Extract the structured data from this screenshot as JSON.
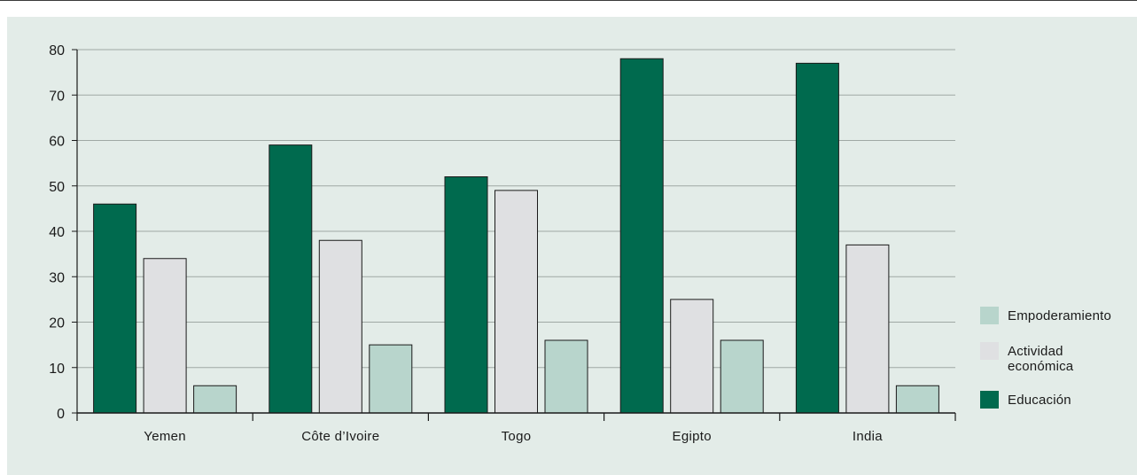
{
  "chart_data": {
    "type": "bar",
    "categories": [
      "Yemen",
      "Côte d’Ivoire",
      "Togo",
      "Egipto",
      "India"
    ],
    "series": [
      {
        "name": "Educación",
        "color": "#006a4e",
        "values": [
          46,
          59,
          52,
          78,
          77
        ]
      },
      {
        "name": "Actividad económica",
        "label_lines": [
          "Actividad",
          "económica"
        ],
        "color": "#dfe0e2",
        "values": [
          34,
          38,
          49,
          25,
          37
        ]
      },
      {
        "name": "Empoderamiento",
        "color": "#b8d5cc",
        "values": [
          6,
          15,
          16,
          16,
          6
        ]
      }
    ],
    "ylim": [
      0,
      80
    ],
    "yticks": [
      0,
      10,
      20,
      30,
      40,
      50,
      60,
      70,
      80
    ],
    "grid": true,
    "legend_position": "right",
    "legend_order": [
      "Empoderamiento",
      "Actividad económica",
      "Educación"
    ]
  }
}
